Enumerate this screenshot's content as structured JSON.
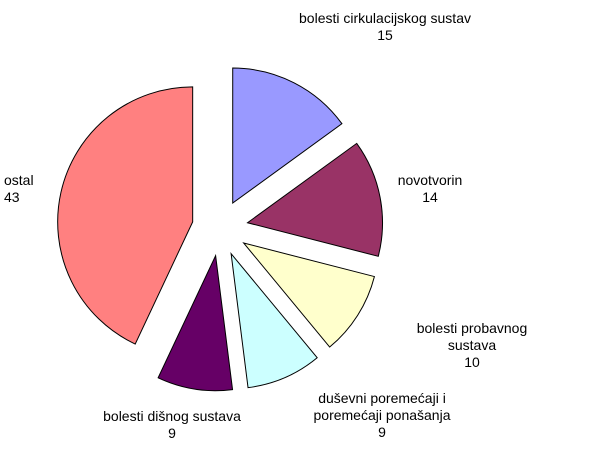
{
  "chart_data": {
    "type": "pie",
    "explode": true,
    "categories": [
      "bolesti cirkulacijskog sustav",
      "novotvorin",
      "bolesti probavnog sustava",
      "duševni poremećaji i poremećaji ponašanja",
      "bolesti dišnog sustava",
      "ostal"
    ],
    "values": [
      15,
      14,
      10,
      9,
      9,
      43
    ],
    "colors": [
      "#9999ff",
      "#993366",
      "#ffffcc",
      "#ccffff",
      "#660066",
      "#ff8080"
    ]
  }
}
